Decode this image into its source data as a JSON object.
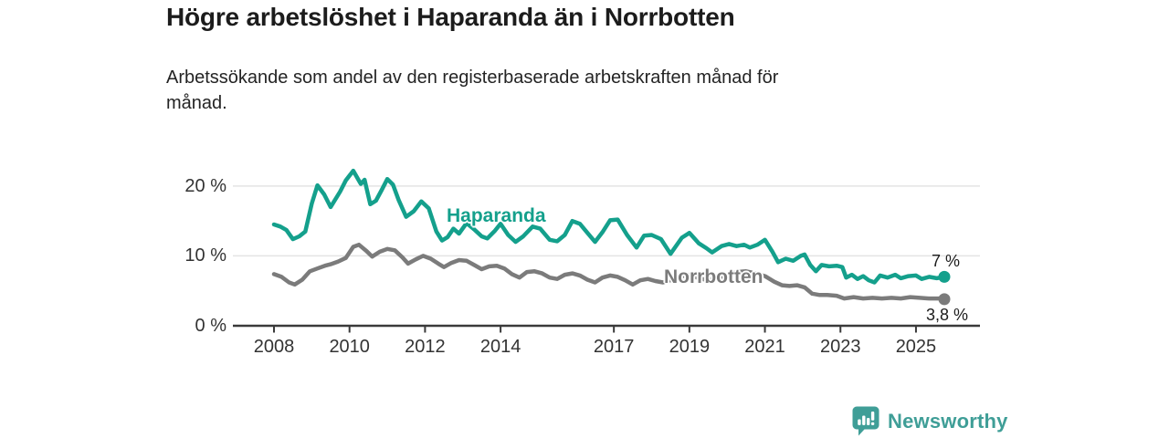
{
  "header": {
    "title": "Högre arbetslöshet i Haparanda än i Norrbotten",
    "subtitle": [
      "Arbetssökande som andel av den registerbaserade arbetskraften månad för",
      "månad."
    ]
  },
  "branding": {
    "name": "Newsworthy",
    "icon": "newsworthy-speech-bubble-bar-chart-icon",
    "color": "#3f9e97"
  },
  "chart_data": {
    "type": "line",
    "title": "Högre arbetslöshet i Haparanda än i Norrbotten",
    "subtitle": "Arbetssökande som andel av den registerbaserade arbetskraften månad för månad.",
    "unit": "%",
    "grid": "horizontal",
    "legend_position": "inline-labels",
    "xlim": [
      2007.6,
      2026.7
    ],
    "ylim": [
      0,
      23
    ],
    "yticks": [
      {
        "value": 0,
        "label": "0 %"
      },
      {
        "value": 10,
        "label": "10 %"
      },
      {
        "value": 20,
        "label": "20 %"
      }
    ],
    "xticks": [
      {
        "value": 2008,
        "label": "2008"
      },
      {
        "value": 2010,
        "label": "2010"
      },
      {
        "value": 2012,
        "label": "2012"
      },
      {
        "value": 2014,
        "label": "2014"
      },
      {
        "value": 2017,
        "label": "2017"
      },
      {
        "value": 2019,
        "label": "2019"
      },
      {
        "value": 2021,
        "label": "2021"
      },
      {
        "value": 2023,
        "label": "2023"
      },
      {
        "value": 2025,
        "label": "2025"
      }
    ],
    "series": [
      {
        "name": "Haparanda",
        "color": "#14a08c",
        "end_label": "7 %",
        "end_value": 7.0,
        "points": [
          [
            2008.0,
            14.5
          ],
          [
            2008.17,
            14.2
          ],
          [
            2008.33,
            13.7
          ],
          [
            2008.5,
            12.4
          ],
          [
            2008.67,
            12.8
          ],
          [
            2008.83,
            13.5
          ],
          [
            2009.0,
            17.5
          ],
          [
            2009.15,
            20.1
          ],
          [
            2009.33,
            18.8
          ],
          [
            2009.5,
            17.0
          ],
          [
            2009.75,
            19.2
          ],
          [
            2009.9,
            20.8
          ],
          [
            2010.1,
            22.2
          ],
          [
            2010.3,
            20.3
          ],
          [
            2010.4,
            20.9
          ],
          [
            2010.55,
            17.4
          ],
          [
            2010.7,
            17.9
          ],
          [
            2010.85,
            19.4
          ],
          [
            2011.0,
            21.0
          ],
          [
            2011.15,
            20.2
          ],
          [
            2011.3,
            18.0
          ],
          [
            2011.5,
            15.6
          ],
          [
            2011.7,
            16.4
          ],
          [
            2011.9,
            17.8
          ],
          [
            2012.1,
            16.8
          ],
          [
            2012.3,
            13.5
          ],
          [
            2012.45,
            12.2
          ],
          [
            2012.6,
            12.7
          ],
          [
            2012.75,
            13.9
          ],
          [
            2012.9,
            13.2
          ],
          [
            2013.1,
            14.7
          ],
          [
            2013.3,
            13.8
          ],
          [
            2013.5,
            12.8
          ],
          [
            2013.65,
            12.5
          ],
          [
            2013.85,
            13.6
          ],
          [
            2014.0,
            14.6
          ],
          [
            2014.2,
            13.0
          ],
          [
            2014.4,
            12.0
          ],
          [
            2014.6,
            12.8
          ],
          [
            2014.85,
            14.2
          ],
          [
            2015.05,
            13.9
          ],
          [
            2015.3,
            12.3
          ],
          [
            2015.5,
            12.1
          ],
          [
            2015.7,
            13.0
          ],
          [
            2015.9,
            15.0
          ],
          [
            2016.1,
            14.6
          ],
          [
            2016.3,
            13.3
          ],
          [
            2016.5,
            12.0
          ],
          [
            2016.7,
            13.4
          ],
          [
            2016.9,
            15.1
          ],
          [
            2017.1,
            15.2
          ],
          [
            2017.35,
            13.0
          ],
          [
            2017.6,
            11.2
          ],
          [
            2017.8,
            12.9
          ],
          [
            2018.0,
            13.0
          ],
          [
            2018.25,
            12.4
          ],
          [
            2018.5,
            10.3
          ],
          [
            2018.8,
            12.6
          ],
          [
            2019.0,
            13.3
          ],
          [
            2019.25,
            11.8
          ],
          [
            2019.45,
            11.1
          ],
          [
            2019.6,
            10.5
          ],
          [
            2019.85,
            11.4
          ],
          [
            2020.05,
            11.7
          ],
          [
            2020.25,
            11.4
          ],
          [
            2020.45,
            11.6
          ],
          [
            2020.6,
            11.2
          ],
          [
            2020.8,
            11.6
          ],
          [
            2021.0,
            12.3
          ],
          [
            2021.2,
            10.6
          ],
          [
            2021.35,
            9.1
          ],
          [
            2021.55,
            9.6
          ],
          [
            2021.75,
            9.3
          ],
          [
            2021.95,
            10.0
          ],
          [
            2022.05,
            10.2
          ],
          [
            2022.2,
            8.7
          ],
          [
            2022.35,
            7.8
          ],
          [
            2022.5,
            8.7
          ],
          [
            2022.7,
            8.5
          ],
          [
            2022.9,
            8.6
          ],
          [
            2023.05,
            8.4
          ],
          [
            2023.15,
            6.9
          ],
          [
            2023.3,
            7.3
          ],
          [
            2023.45,
            6.7
          ],
          [
            2023.6,
            7.1
          ],
          [
            2023.75,
            6.5
          ],
          [
            2023.9,
            6.2
          ],
          [
            2024.05,
            7.2
          ],
          [
            2024.25,
            6.9
          ],
          [
            2024.45,
            7.3
          ],
          [
            2024.6,
            6.8
          ],
          [
            2024.8,
            7.1
          ],
          [
            2025.0,
            7.2
          ],
          [
            2025.15,
            6.7
          ],
          [
            2025.35,
            7.0
          ],
          [
            2025.55,
            6.8
          ],
          [
            2025.75,
            7.0
          ]
        ]
      },
      {
        "name": "Norrbotten",
        "color": "#7b7b7b",
        "end_label": "3,8 %",
        "end_value": 3.8,
        "points": [
          [
            2008.0,
            7.4
          ],
          [
            2008.2,
            7.0
          ],
          [
            2008.4,
            6.2
          ],
          [
            2008.55,
            5.9
          ],
          [
            2008.75,
            6.6
          ],
          [
            2008.95,
            7.8
          ],
          [
            2009.15,
            8.2
          ],
          [
            2009.35,
            8.6
          ],
          [
            2009.5,
            8.8
          ],
          [
            2009.7,
            9.2
          ],
          [
            2009.9,
            9.7
          ],
          [
            2010.1,
            11.3
          ],
          [
            2010.25,
            11.6
          ],
          [
            2010.45,
            10.7
          ],
          [
            2010.6,
            9.9
          ],
          [
            2010.8,
            10.6
          ],
          [
            2011.0,
            11.0
          ],
          [
            2011.2,
            10.8
          ],
          [
            2011.4,
            9.8
          ],
          [
            2011.55,
            8.9
          ],
          [
            2011.75,
            9.5
          ],
          [
            2011.95,
            10.0
          ],
          [
            2012.15,
            9.6
          ],
          [
            2012.35,
            8.9
          ],
          [
            2012.5,
            8.4
          ],
          [
            2012.7,
            9.0
          ],
          [
            2012.9,
            9.4
          ],
          [
            2013.1,
            9.3
          ],
          [
            2013.3,
            8.7
          ],
          [
            2013.5,
            8.1
          ],
          [
            2013.7,
            8.5
          ],
          [
            2013.9,
            8.6
          ],
          [
            2014.1,
            8.2
          ],
          [
            2014.3,
            7.4
          ],
          [
            2014.5,
            6.9
          ],
          [
            2014.7,
            7.7
          ],
          [
            2014.9,
            7.8
          ],
          [
            2015.1,
            7.5
          ],
          [
            2015.3,
            6.9
          ],
          [
            2015.5,
            6.7
          ],
          [
            2015.7,
            7.3
          ],
          [
            2015.9,
            7.5
          ],
          [
            2016.1,
            7.2
          ],
          [
            2016.3,
            6.6
          ],
          [
            2016.5,
            6.2
          ],
          [
            2016.7,
            6.9
          ],
          [
            2016.9,
            7.2
          ],
          [
            2017.1,
            7.0
          ],
          [
            2017.3,
            6.5
          ],
          [
            2017.5,
            5.9
          ],
          [
            2017.7,
            6.5
          ],
          [
            2017.9,
            6.7
          ],
          [
            2018.1,
            6.4
          ],
          [
            2018.3,
            6.2
          ],
          [
            2018.55,
            6.6
          ],
          [
            2018.8,
            7.1
          ],
          [
            2019.0,
            7.3
          ],
          [
            2019.25,
            6.8
          ],
          [
            2019.5,
            6.5
          ],
          [
            2019.75,
            6.9
          ],
          [
            2020.0,
            7.2
          ],
          [
            2020.25,
            7.7
          ],
          [
            2020.5,
            7.8
          ],
          [
            2020.75,
            7.5
          ],
          [
            2021.0,
            7.1
          ],
          [
            2021.25,
            6.3
          ],
          [
            2021.45,
            5.8
          ],
          [
            2021.65,
            5.7
          ],
          [
            2021.85,
            5.8
          ],
          [
            2022.05,
            5.5
          ],
          [
            2022.25,
            4.6
          ],
          [
            2022.45,
            4.4
          ],
          [
            2022.65,
            4.4
          ],
          [
            2022.9,
            4.3
          ],
          [
            2023.1,
            3.9
          ],
          [
            2023.35,
            4.1
          ],
          [
            2023.6,
            3.9
          ],
          [
            2023.85,
            4.0
          ],
          [
            2024.1,
            3.9
          ],
          [
            2024.35,
            4.0
          ],
          [
            2024.6,
            3.9
          ],
          [
            2024.85,
            4.1
          ],
          [
            2025.1,
            4.0
          ],
          [
            2025.35,
            3.9
          ],
          [
            2025.6,
            3.9
          ],
          [
            2025.75,
            3.8
          ]
        ]
      }
    ]
  }
}
